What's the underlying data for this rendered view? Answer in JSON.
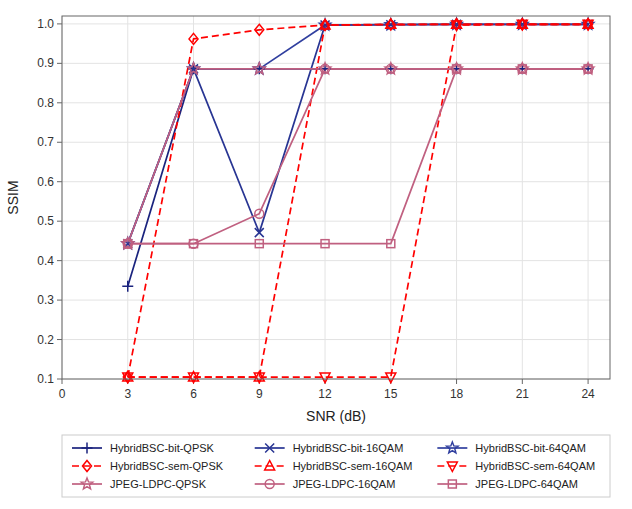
{
  "chart_data": {
    "type": "line",
    "x": [
      3,
      6,
      9,
      12,
      15,
      18,
      21,
      24
    ],
    "xlabel": "SNR (dB)",
    "ylabel": "SSIM",
    "xlim": [
      0,
      25
    ],
    "ylim": [
      0.1,
      1.02
    ],
    "xticks": [
      0,
      3,
      6,
      9,
      12,
      15,
      18,
      21,
      24
    ],
    "yticks": [
      0.1,
      0.2,
      0.3,
      0.4,
      0.5,
      0.6,
      0.7,
      0.8,
      0.9,
      {
        "value": 1.0,
        "label": "1.0"
      }
    ],
    "grid": true,
    "legend": "bottom",
    "series": [
      {
        "name": "HybridBSC-bit-QPSK",
        "color": "#1a237e",
        "line_style": "solid",
        "marker": "plus",
        "values": [
          0.335,
          0.886,
          0.886,
          0.886,
          0.886,
          0.886,
          0.886,
          0.886
        ]
      },
      {
        "name": "HybridBSC-bit-16QAM",
        "color": "#283593",
        "line_style": "solid",
        "marker": "x",
        "values": [
          0.443,
          0.886,
          0.471,
          0.997,
          0.998,
          0.999,
          0.999,
          0.999
        ]
      },
      {
        "name": "HybridBSC-bit-64QAM",
        "color": "#303f9f",
        "line_style": "solid",
        "marker": "star",
        "values": [
          0.443,
          0.886,
          0.886,
          0.997,
          0.998,
          0.999,
          0.999,
          0.999
        ]
      },
      {
        "name": "HybridBSC-sem-QPSK",
        "color": "#ff0000",
        "line_style": "dashed",
        "marker": "diamond",
        "values": [
          0.105,
          0.962,
          0.985,
          0.997,
          0.998,
          0.999,
          0.999,
          0.999
        ]
      },
      {
        "name": "HybridBSC-sem-16QAM",
        "color": "#ff0000",
        "line_style": "dashed",
        "marker": "triangle-up",
        "values": [
          0.105,
          0.105,
          0.105,
          0.997,
          0.999,
          0.999,
          0.999,
          0.999
        ]
      },
      {
        "name": "HybridBSC-sem-64QAM",
        "color": "#ff0000",
        "line_style": "dashed",
        "marker": "triangle-down",
        "values": [
          0.105,
          0.105,
          0.105,
          0.105,
          0.105,
          0.997,
          0.999,
          0.999
        ]
      },
      {
        "name": "JPEG-LDPC-QPSK",
        "color": "#c06080",
        "line_style": "solid",
        "marker": "star",
        "values": [
          0.443,
          0.886,
          0.886,
          0.886,
          0.886,
          0.886,
          0.886,
          0.886
        ]
      },
      {
        "name": "JPEG-LDPC-16QAM",
        "color": "#c06080",
        "line_style": "solid",
        "marker": "circle",
        "values": [
          0.443,
          0.443,
          0.519,
          0.886,
          0.886,
          0.886,
          0.886,
          0.886
        ]
      },
      {
        "name": "JPEG-LDPC-64QAM",
        "color": "#c06080",
        "line_style": "solid",
        "marker": "square",
        "values": [
          0.443,
          0.443,
          0.443,
          0.443,
          0.443,
          0.886,
          0.886,
          0.886
        ]
      }
    ]
  }
}
